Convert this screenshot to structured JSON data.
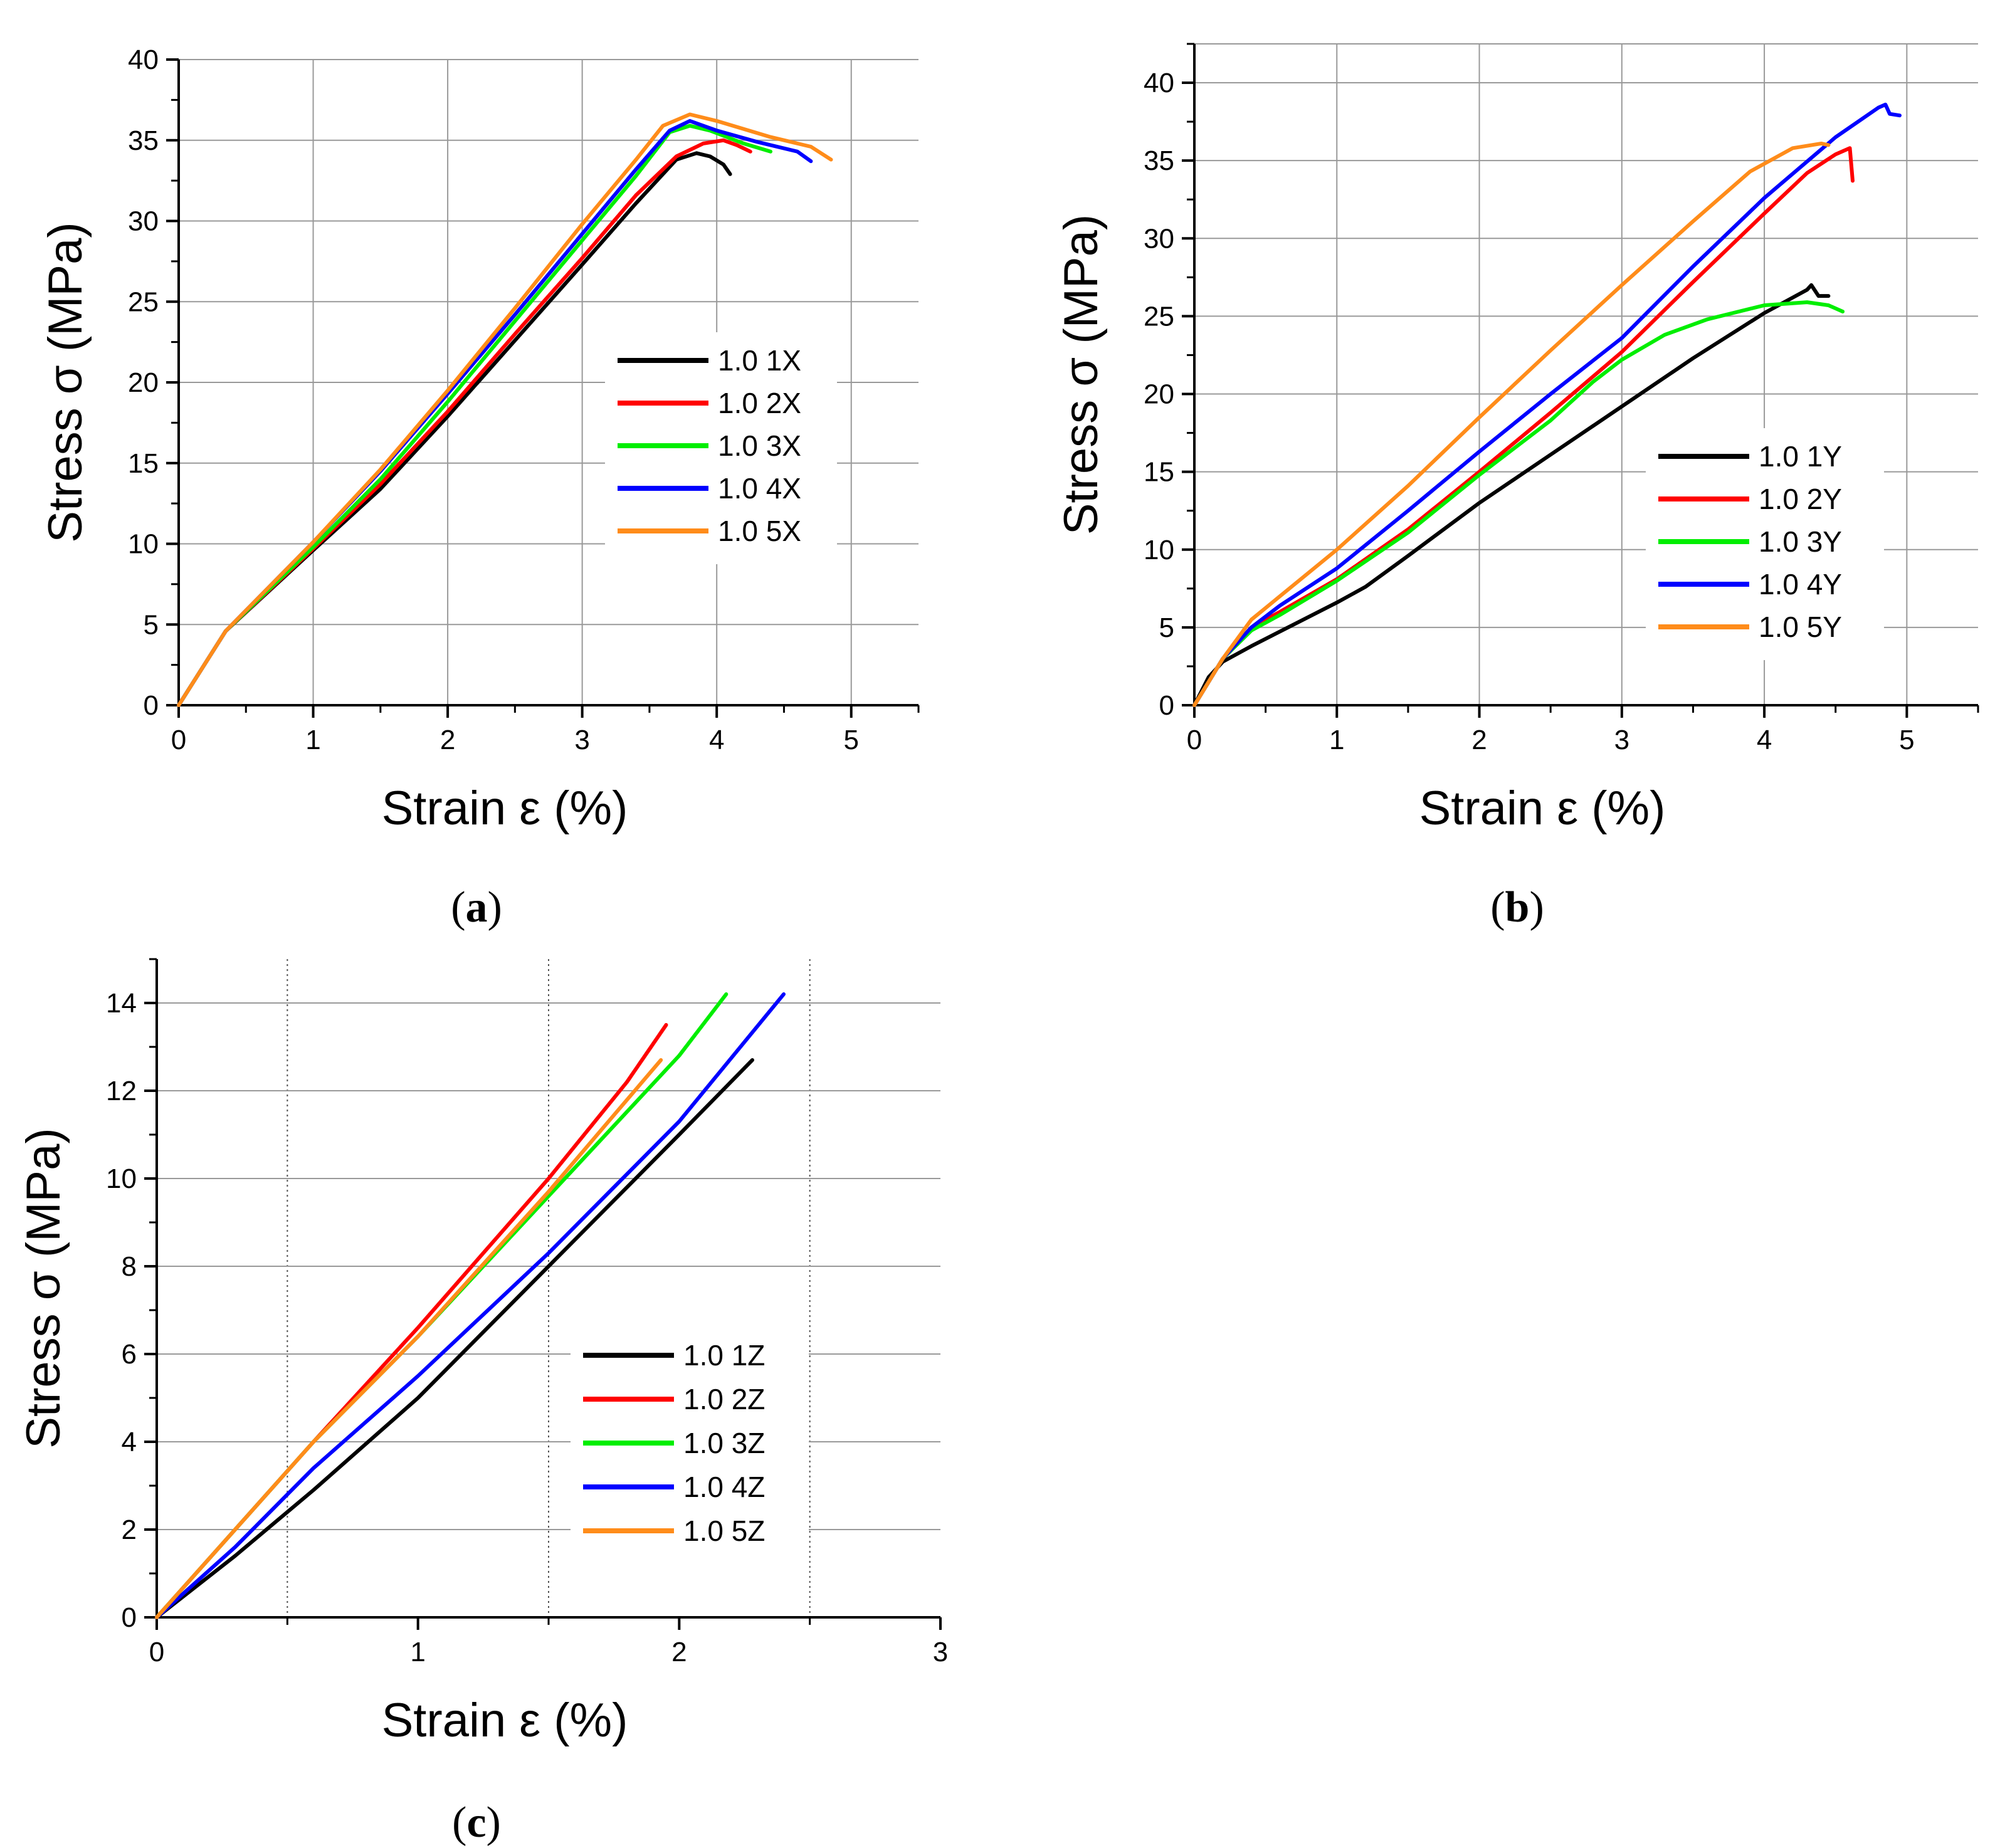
{
  "chart_data": [
    {
      "id": "a",
      "type": "line",
      "caption_open": "(",
      "caption_letter": "a",
      "caption_close": ")",
      "title": "",
      "xlabel": "Strain ε (%)",
      "ylabel": "Stress σ (MPa)",
      "xlim": [
        0,
        5.5
      ],
      "ylim": [
        0,
        40
      ],
      "xticks": [
        0,
        1,
        2,
        3,
        4,
        5
      ],
      "yticks": [
        0,
        5,
        10,
        15,
        20,
        25,
        30,
        35,
        40
      ],
      "grid": "solid",
      "legend_position": "center-right",
      "series": [
        {
          "name": "1.0 1X",
          "color": "#000000",
          "points": [
            [
              0,
              0
            ],
            [
              0.35,
              4.6
            ],
            [
              1,
              9.6
            ],
            [
              1.5,
              13.4
            ],
            [
              2,
              17.9
            ],
            [
              2.5,
              22.6
            ],
            [
              3,
              27.3
            ],
            [
              3.4,
              31.1
            ],
            [
              3.7,
              33.8
            ],
            [
              3.85,
              34.2
            ],
            [
              3.95,
              34.0
            ],
            [
              4.05,
              33.5
            ],
            [
              4.1,
              32.9
            ]
          ]
        },
        {
          "name": "1.0 2X",
          "color": "#ff0000",
          "points": [
            [
              0,
              0
            ],
            [
              0.35,
              4.6
            ],
            [
              1,
              9.7
            ],
            [
              1.5,
              13.7
            ],
            [
              2,
              18.2
            ],
            [
              2.5,
              23.0
            ],
            [
              3,
              27.7
            ],
            [
              3.4,
              31.6
            ],
            [
              3.7,
              34.0
            ],
            [
              3.9,
              34.8
            ],
            [
              4.05,
              35.0
            ],
            [
              4.15,
              34.7
            ],
            [
              4.25,
              34.3
            ]
          ]
        },
        {
          "name": "1.0 3X",
          "color": "#00ee00",
          "points": [
            [
              0,
              0
            ],
            [
              0.35,
              4.6
            ],
            [
              1,
              9.8
            ],
            [
              1.5,
              14.0
            ],
            [
              2,
              18.8
            ],
            [
              2.5,
              23.8
            ],
            [
              3,
              28.8
            ],
            [
              3.4,
              32.8
            ],
            [
              3.65,
              35.5
            ],
            [
              3.8,
              35.9
            ],
            [
              3.95,
              35.6
            ],
            [
              4.2,
              34.8
            ],
            [
              4.4,
              34.3
            ]
          ]
        },
        {
          "name": "1.0 4X",
          "color": "#0000ff",
          "points": [
            [
              0,
              0
            ],
            [
              0.35,
              4.6
            ],
            [
              1,
              10.1
            ],
            [
              1.5,
              14.5
            ],
            [
              2,
              19.3
            ],
            [
              2.5,
              24.2
            ],
            [
              3,
              29.2
            ],
            [
              3.4,
              33.2
            ],
            [
              3.65,
              35.6
            ],
            [
              3.8,
              36.2
            ],
            [
              4.0,
              35.6
            ],
            [
              4.3,
              34.9
            ],
            [
              4.6,
              34.3
            ],
            [
              4.7,
              33.7
            ]
          ]
        },
        {
          "name": "1.0 5X",
          "color": "#ff8c1a",
          "points": [
            [
              0,
              0
            ],
            [
              0.35,
              4.6
            ],
            [
              1,
              10.1
            ],
            [
              1.5,
              14.6
            ],
            [
              2,
              19.5
            ],
            [
              2.5,
              24.6
            ],
            [
              3,
              29.8
            ],
            [
              3.4,
              33.8
            ],
            [
              3.6,
              35.9
            ],
            [
              3.8,
              36.6
            ],
            [
              4.0,
              36.2
            ],
            [
              4.4,
              35.2
            ],
            [
              4.7,
              34.6
            ],
            [
              4.85,
              33.8
            ]
          ]
        }
      ]
    },
    {
      "id": "b",
      "type": "line",
      "caption_open": "(",
      "caption_letter": "b",
      "caption_close": ")",
      "title": "",
      "xlabel": "Strain ε (%)",
      "ylabel": "Stress σ (MPa)",
      "xlim": [
        0,
        5.5
      ],
      "ylim": [
        0,
        42.5
      ],
      "xticks": [
        0,
        1,
        2,
        3,
        4,
        5
      ],
      "yticks": [
        0,
        5,
        10,
        15,
        20,
        25,
        30,
        35,
        40
      ],
      "grid": "solid",
      "legend_position": "lower-right",
      "series": [
        {
          "name": "1.0 1Y",
          "color": "#000000",
          "points": [
            [
              0,
              0
            ],
            [
              0.1,
              1.8
            ],
            [
              0.2,
              2.8
            ],
            [
              0.4,
              3.8
            ],
            [
              0.7,
              5.2
            ],
            [
              1.0,
              6.6
            ],
            [
              1.2,
              7.6
            ],
            [
              1.5,
              9.6
            ],
            [
              2.0,
              13.0
            ],
            [
              2.5,
              16.1
            ],
            [
              3.0,
              19.2
            ],
            [
              3.5,
              22.3
            ],
            [
              4.0,
              25.2
            ],
            [
              4.3,
              26.7
            ],
            [
              4.33,
              27.0
            ],
            [
              4.38,
              26.3
            ],
            [
              4.45,
              26.3
            ]
          ]
        },
        {
          "name": "1.0 2Y",
          "color": "#ff0000",
          "points": [
            [
              0,
              0
            ],
            [
              0.2,
              3.0
            ],
            [
              0.4,
              5.0
            ],
            [
              0.6,
              6.0
            ],
            [
              1.0,
              8.1
            ],
            [
              1.5,
              11.3
            ],
            [
              2.0,
              15.0
            ],
            [
              2.5,
              18.8
            ],
            [
              3.0,
              22.7
            ],
            [
              3.5,
              27.2
            ],
            [
              4.0,
              31.6
            ],
            [
              4.3,
              34.2
            ],
            [
              4.5,
              35.4
            ],
            [
              4.6,
              35.8
            ],
            [
              4.62,
              33.7
            ]
          ]
        },
        {
          "name": "1.0 3Y",
          "color": "#00ee00",
          "points": [
            [
              0,
              0
            ],
            [
              0.2,
              3.0
            ],
            [
              0.4,
              4.8
            ],
            [
              0.6,
              5.8
            ],
            [
              1.0,
              8.0
            ],
            [
              1.5,
              11.1
            ],
            [
              2.0,
              14.8
            ],
            [
              2.5,
              18.3
            ],
            [
              2.8,
              20.8
            ],
            [
              3.0,
              22.2
            ],
            [
              3.3,
              23.8
            ],
            [
              3.6,
              24.8
            ],
            [
              4.0,
              25.7
            ],
            [
              4.3,
              25.9
            ],
            [
              4.45,
              25.7
            ],
            [
              4.55,
              25.3
            ]
          ]
        },
        {
          "name": "1.0 4Y",
          "color": "#0000ff",
          "points": [
            [
              0,
              0
            ],
            [
              0.2,
              3.0
            ],
            [
              0.4,
              5.0
            ],
            [
              0.6,
              6.4
            ],
            [
              1.0,
              8.8
            ],
            [
              1.5,
              12.5
            ],
            [
              2.0,
              16.3
            ],
            [
              2.5,
              20.0
            ],
            [
              3.0,
              23.6
            ],
            [
              3.5,
              28.2
            ],
            [
              4.0,
              32.6
            ],
            [
              4.5,
              36.5
            ],
            [
              4.8,
              38.4
            ],
            [
              4.85,
              38.6
            ],
            [
              4.88,
              38.0
            ],
            [
              4.95,
              37.9
            ]
          ]
        },
        {
          "name": "1.0 5Y",
          "color": "#ff8c1a",
          "points": [
            [
              0,
              0
            ],
            [
              0.2,
              3.0
            ],
            [
              0.4,
              5.5
            ],
            [
              0.6,
              7.0
            ],
            [
              1.0,
              10.0
            ],
            [
              1.5,
              14.1
            ],
            [
              2.0,
              18.5
            ],
            [
              2.5,
              22.8
            ],
            [
              3.0,
              27.0
            ],
            [
              3.5,
              31.1
            ],
            [
              3.9,
              34.3
            ],
            [
              4.2,
              35.8
            ],
            [
              4.4,
              36.1
            ],
            [
              4.45,
              36.0
            ]
          ]
        }
      ]
    },
    {
      "id": "c",
      "type": "line",
      "caption_open": "(",
      "caption_letter": "c",
      "caption_close": ")",
      "title": "",
      "xlabel": "Strain ε (%)",
      "ylabel": "Stress σ (MPa)",
      "xlim": [
        0,
        3
      ],
      "ylim": [
        0,
        15
      ],
      "xticks": [
        0,
        1,
        2,
        3
      ],
      "yticks": [
        0,
        2,
        4,
        6,
        8,
        10,
        12,
        14
      ],
      "grid": "dotted-x-solid-y",
      "legend_position": "lower-right",
      "series": [
        {
          "name": "1.0 1Z",
          "color": "#000000",
          "points": [
            [
              0,
              0
            ],
            [
              0.3,
              1.4
            ],
            [
              0.6,
              2.9
            ],
            [
              1.0,
              5.0
            ],
            [
              1.5,
              8.0
            ],
            [
              2.0,
              11.0
            ],
            [
              2.28,
              12.7
            ]
          ]
        },
        {
          "name": "1.0 2Z",
          "color": "#ff0000",
          "points": [
            [
              0,
              0
            ],
            [
              0.3,
              2.0
            ],
            [
              0.6,
              4.0
            ],
            [
              1.0,
              6.6
            ],
            [
              1.5,
              10.0
            ],
            [
              1.8,
              12.2
            ],
            [
              1.95,
              13.5
            ]
          ]
        },
        {
          "name": "1.0 3Z",
          "color": "#00ee00",
          "points": [
            [
              0,
              0
            ],
            [
              0.3,
              2.0
            ],
            [
              0.6,
              4.0
            ],
            [
              1.0,
              6.4
            ],
            [
              1.5,
              9.6
            ],
            [
              2.0,
              12.8
            ],
            [
              2.18,
              14.2
            ]
          ]
        },
        {
          "name": "1.0 4Z",
          "color": "#0000ff",
          "points": [
            [
              0,
              0
            ],
            [
              0.3,
              1.6
            ],
            [
              0.6,
              3.4
            ],
            [
              1.0,
              5.5
            ],
            [
              1.5,
              8.3
            ],
            [
              2.0,
              11.3
            ],
            [
              2.4,
              14.2
            ]
          ]
        },
        {
          "name": "1.0 5Z",
          "color": "#ff8c1a",
          "points": [
            [
              0,
              0
            ],
            [
              0.3,
              2.0
            ],
            [
              0.6,
              4.0
            ],
            [
              1.0,
              6.4
            ],
            [
              1.5,
              9.7
            ],
            [
              1.93,
              12.7
            ]
          ]
        }
      ]
    }
  ]
}
